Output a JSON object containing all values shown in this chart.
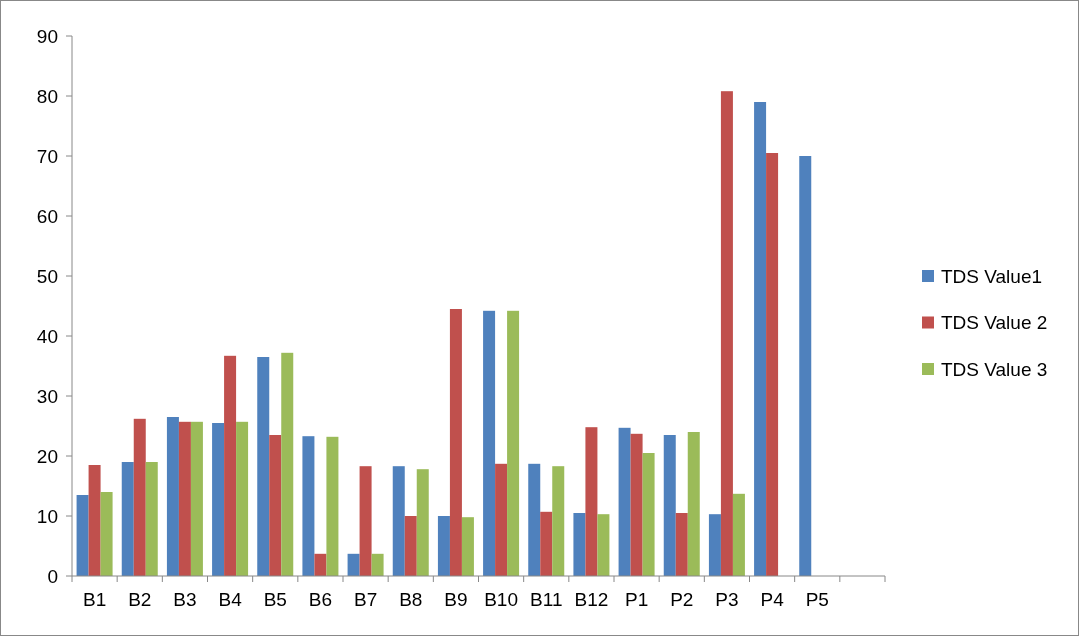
{
  "chart_data": {
    "type": "bar",
    "categories": [
      "B1",
      "B2",
      "B3",
      "B4",
      "B5",
      "B6",
      "B7",
      "B8",
      "B9",
      "B10",
      "B11",
      "B12",
      "P1",
      "P2",
      "P3",
      "P4",
      "P5",
      null
    ],
    "series": [
      {
        "name": "TDS Value1",
        "color": "#4f81bd",
        "values": [
          13.5,
          19,
          26.5,
          25.5,
          36.5,
          23.3,
          3.7,
          18.3,
          10,
          44.2,
          18.7,
          10.5,
          24.7,
          23.5,
          10.3,
          79,
          70,
          null
        ]
      },
      {
        "name": "TDS Value 2",
        "color": "#c0504d",
        "values": [
          18.5,
          26.2,
          25.7,
          36.7,
          23.5,
          3.7,
          18.3,
          10,
          44.5,
          18.7,
          10.7,
          24.8,
          23.7,
          10.5,
          80.8,
          70.5,
          null,
          null
        ]
      },
      {
        "name": "TDS Value 3",
        "color": "#9bbb59",
        "values": [
          14,
          19,
          25.7,
          25.7,
          37.2,
          23.2,
          3.7,
          17.8,
          9.8,
          44.2,
          18.3,
          10.3,
          20.5,
          24,
          13.7,
          null,
          null,
          null
        ]
      }
    ],
    "ylim": [
      0,
      90
    ],
    "yticks": [
      0,
      10,
      20,
      30,
      40,
      50,
      60,
      70,
      80,
      90
    ],
    "legend": "right"
  }
}
